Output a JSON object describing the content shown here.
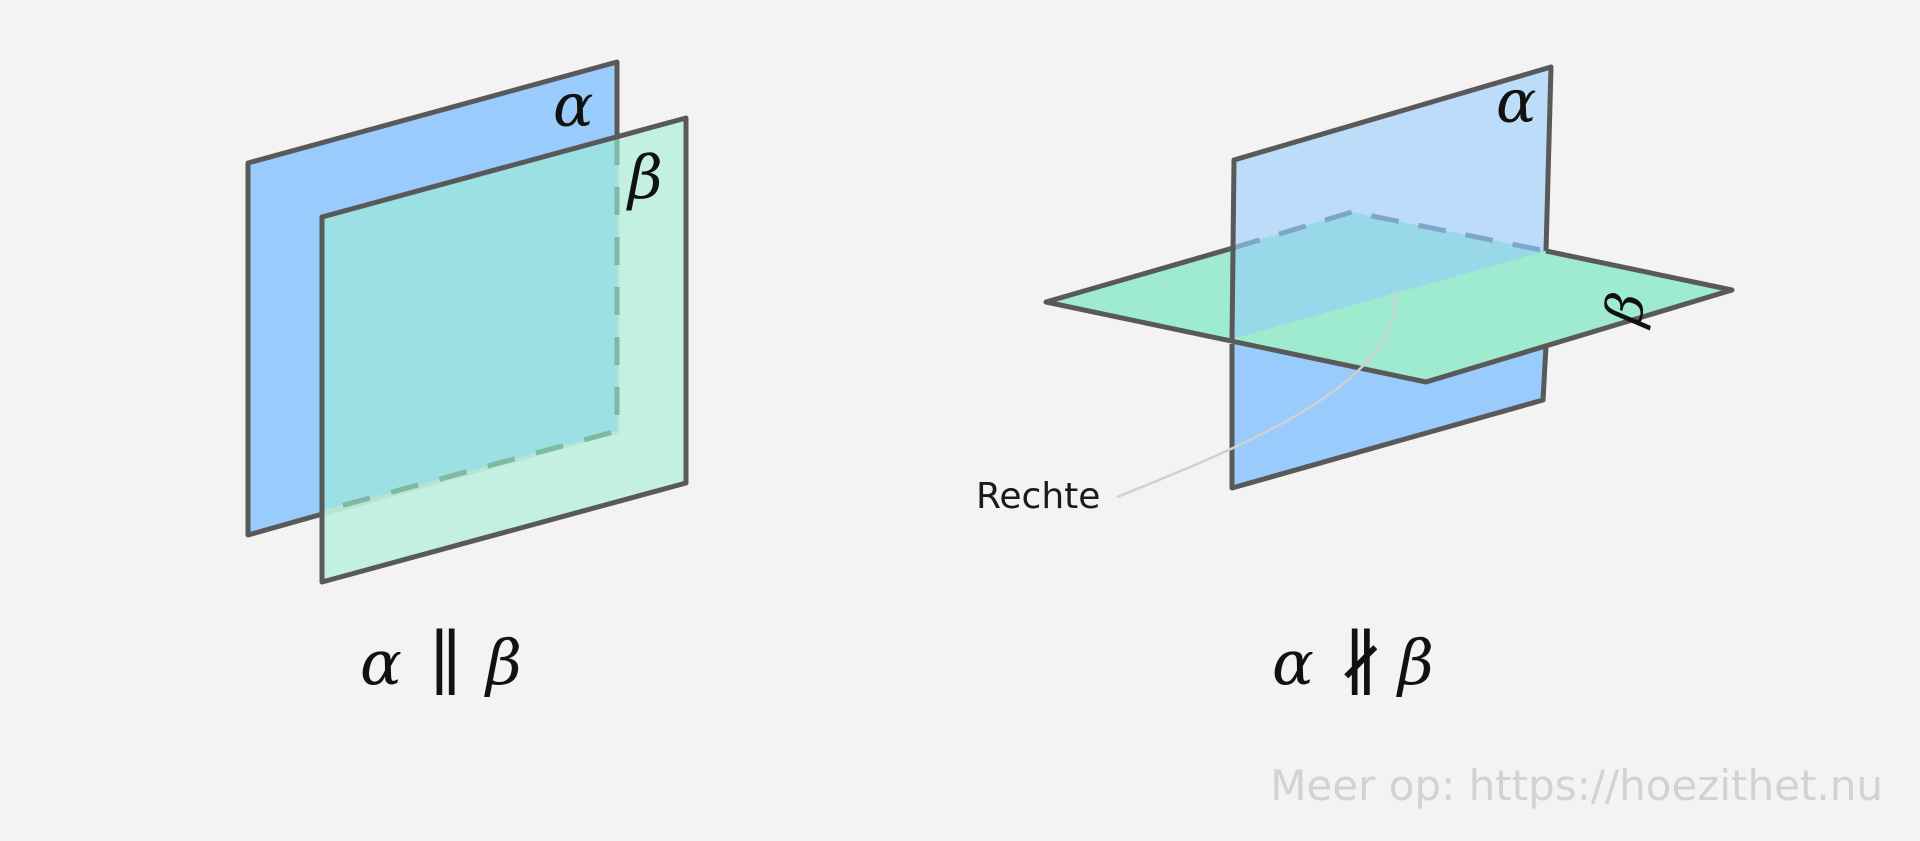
{
  "colors": {
    "background": "#f3f3f3",
    "plane_alpha": "#99cbfd",
    "plane_alpha_light": "#bcdcf9",
    "plane_beta": "#9febd0",
    "plane_beta_translucent": "#bff0de",
    "overlap": "#9be0e2",
    "edge": "#595959",
    "hidden_edge_left": "#7fb9a3",
    "hidden_edge_right": "#7fa6c8",
    "pointer_line": "#d0d0d0"
  },
  "left_figure": {
    "label_alpha": "α",
    "label_beta": "β",
    "caption_left": "α",
    "caption_rel": "∥",
    "caption_right": "β"
  },
  "right_figure": {
    "label_alpha": "α",
    "label_beta": "β",
    "line_label": "Rechte",
    "caption_left": "α",
    "caption_rel": "∦",
    "caption_right": "β"
  },
  "watermark": "Meer op: https://hoezithet.nu"
}
